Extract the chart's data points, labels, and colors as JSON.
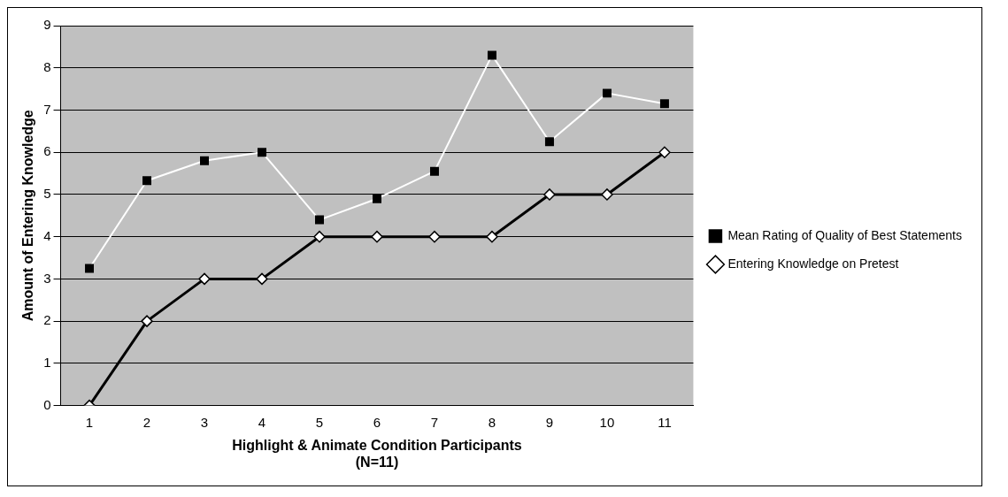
{
  "chart_data": {
    "type": "line",
    "xlabel": "Highlight & Animate Condition Participants\n(N=11)",
    "ylabel": "Amount of Entering Knowledge",
    "categories": [
      "1",
      "2",
      "3",
      "4",
      "5",
      "6",
      "7",
      "8",
      "9",
      "10",
      "11"
    ],
    "series": [
      {
        "name": "Mean Rating of Quality of Best Statements",
        "color": "#000000",
        "marker": "square",
        "values": [
          3.25,
          5.33,
          5.8,
          6.0,
          4.4,
          4.9,
          5.55,
          8.3,
          6.25,
          7.4,
          7.15
        ]
      },
      {
        "name": "Entering Knowledge on Pretest",
        "color": "#000000",
        "marker": "diamond",
        "values": [
          0,
          2,
          3,
          3,
          4,
          4,
          4,
          4,
          5,
          5,
          6
        ]
      }
    ],
    "ylim": [
      0,
      9
    ],
    "yticks": [
      0,
      1,
      2,
      3,
      4,
      5,
      6,
      7,
      8,
      9
    ],
    "grid": "y",
    "legend": "right",
    "line_style": "solid"
  }
}
